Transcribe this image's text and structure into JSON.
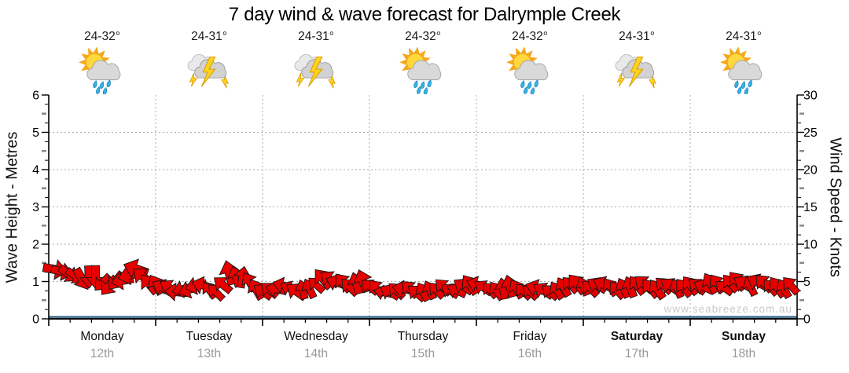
{
  "title": "7 day wind & wave forecast for Dalrymple Creek",
  "watermark": "www.seabreeze.com.au",
  "colors": {
    "wind_arrow": "#e60000",
    "arrow_outline": "#161616",
    "wave_line": "#255c80",
    "grid": "#ababab",
    "axis": "#000000",
    "tick_half": "#8a8a8a",
    "date_text": "#999999",
    "watermark_text": "#c9c9c9"
  },
  "chart_data": {
    "type": "line",
    "title": "7 day wind & wave forecast for Dalrymple Creek",
    "left_axis": {
      "label": "Wave Height - Metres",
      "min": 0,
      "max": 6,
      "major_ticks": [
        0,
        1,
        2,
        3,
        4,
        5,
        6
      ]
    },
    "right_axis": {
      "label": "Wind Speed - Knots",
      "min": 0,
      "max": 30,
      "major_ticks": [
        0,
        5,
        10,
        15,
        20,
        25,
        30
      ]
    },
    "grid": true,
    "legend": "none",
    "days": [
      {
        "name": "Monday",
        "date": "12th",
        "temp": "24-32°",
        "icon": "sun-cloud-showers-icon",
        "weekend": false
      },
      {
        "name": "Tuesday",
        "date": "13th",
        "temp": "24-31°",
        "icon": "thunderstorm-icon",
        "weekend": false
      },
      {
        "name": "Wednesday",
        "date": "14th",
        "temp": "24-31°",
        "icon": "thunderstorm-icon",
        "weekend": false
      },
      {
        "name": "Thursday",
        "date": "15th",
        "temp": "24-32°",
        "icon": "sun-cloud-showers-icon",
        "weekend": false
      },
      {
        "name": "Friday",
        "date": "16th",
        "temp": "24-32°",
        "icon": "sun-cloud-showers-icon",
        "weekend": false
      },
      {
        "name": "Saturday",
        "date": "17th",
        "temp": "24-31°",
        "icon": "thunderstorm-icon",
        "weekend": true
      },
      {
        "name": "Sunday",
        "date": "18th",
        "temp": "24-31°",
        "icon": "sun-cloud-showers-icon",
        "weekend": true
      }
    ],
    "samples_per_day": 8,
    "series": [
      {
        "name": "Wind Speed",
        "unit": "knots",
        "axis": "right",
        "style": "wind-arrows",
        "color": "#e60000",
        "values": [
          6.6,
          6.0,
          5.3,
          5.6,
          4.4,
          5.1,
          6.7,
          4.7,
          4.2,
          3.6,
          3.9,
          4.5,
          3.6,
          6.2,
          5.6,
          4.0,
          3.9,
          4.5,
          3.7,
          4.1,
          5.4,
          4.9,
          4.3,
          5.1,
          4.1,
          3.6,
          4.0,
          3.5,
          3.9,
          4.3,
          3.8,
          4.6,
          4.2,
          3.8,
          4.4,
          3.7,
          4.1,
          3.6,
          4.3,
          4.7,
          4.1,
          4.6,
          3.9,
          4.3,
          4.7,
          4.0,
          4.4,
          4.2,
          4.4,
          4.8,
          4.2,
          5.1,
          4.4,
          4.8,
          4.3,
          4.5
        ],
        "directions_deg": [
          10,
          35,
          60,
          90,
          130,
          170,
          200,
          230,
          210,
          185,
          160,
          195,
          225,
          255,
          280,
          240,
          220,
          195,
          215,
          245,
          230,
          200,
          225,
          250,
          230,
          210,
          190,
          220,
          245,
          225,
          205,
          235,
          215,
          235,
          255,
          225,
          200,
          220,
          240,
          230,
          225,
          205,
          230,
          250,
          220,
          235,
          215,
          230,
          220,
          240,
          215,
          230,
          245,
          225,
          235,
          228
        ]
      },
      {
        "name": "Wave Height",
        "unit": "metres",
        "axis": "left",
        "style": "line",
        "color": "#255c80",
        "constant_value": 0.05
      }
    ]
  }
}
